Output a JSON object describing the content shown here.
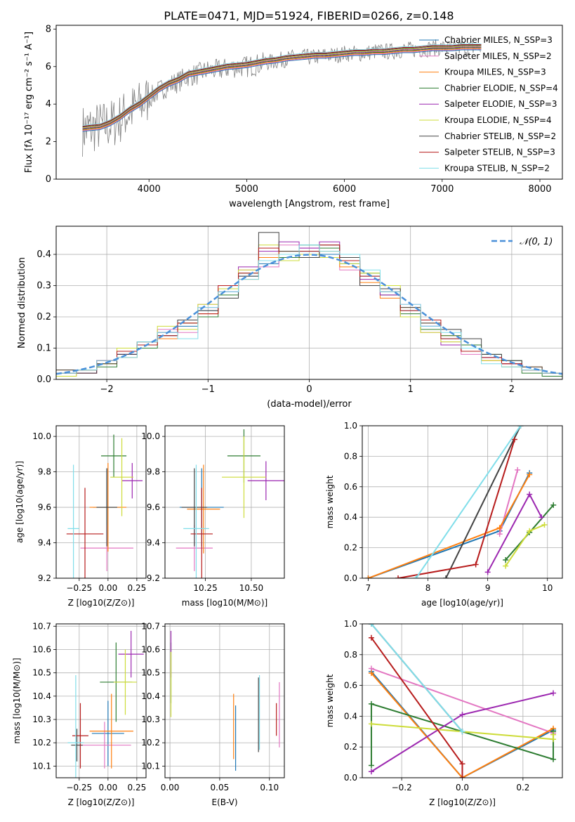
{
  "figure": {
    "title": "PLATE=0471, MJD=51924, FIBERID=0266, z=0.148"
  },
  "colors": {
    "data": "#808080",
    "series": [
      "#1f77b4",
      "#e377c2",
      "#ff7f0e",
      "#2e7d32",
      "#9c27b0",
      "#cddc39",
      "#424242",
      "#b71c1c",
      "#80deea"
    ]
  },
  "chart_data": [
    {
      "type": "line",
      "title": "PLATE=0471, MJD=51924, FIBERID=0266, z=0.148",
      "xlabel": "wavelength [Angstrom, rest frame]",
      "ylabel": "Flux [fλ 10⁻¹⁷ erg cm⁻² s⁻¹ A⁻¹]",
      "xlim": [
        3050,
        8230
      ],
      "ylim": [
        0,
        8.2
      ],
      "xticks": [
        4000,
        5000,
        6000,
        7000,
        8000
      ],
      "yticks": [
        0,
        2,
        4,
        6,
        8
      ],
      "grid": false,
      "legend": "top-right",
      "legend_entries": [
        "Chabrier MILES, N_SSP=3",
        "Salpeter MILES, N_SSP=2",
        "Kroupa MILES, N_SSP=3",
        "Chabrier ELODIE, N_SSP=4",
        "Salpeter ELODIE, N_SSP=3",
        "Kroupa ELODIE, N_SSP=4",
        "Chabrier STELIB, N_SSP=2",
        "Salpeter STELIB, N_SSP=3",
        "Kroupa STELIB, N_SSP=2"
      ],
      "data_series": {
        "x": [
          3320,
          3400,
          3500,
          3600,
          3700,
          3800,
          3900,
          4000,
          4100,
          4200,
          4300,
          4400,
          4500,
          4600,
          4700,
          4800,
          4900,
          5000,
          5100,
          5200,
          5300,
          5400,
          5500,
          5600,
          5700,
          5800,
          5900,
          6000,
          6100,
          6200,
          6300,
          6400,
          6500,
          6600,
          6700,
          6800,
          6900,
          7000,
          7100,
          7200,
          7300,
          7400
        ],
        "y": [
          2.6,
          2.7,
          2.8,
          2.9,
          3.2,
          3.6,
          3.9,
          4.3,
          4.7,
          5.0,
          5.2,
          5.5,
          5.6,
          5.8,
          5.8,
          5.9,
          6.0,
          6.0,
          6.1,
          6.2,
          6.3,
          6.4,
          6.5,
          6.5,
          6.5,
          6.6,
          6.6,
          6.7,
          6.7,
          6.7,
          6.8,
          6.8,
          6.8,
          6.9,
          6.9,
          6.9,
          7.0,
          7.0,
          7.0,
          7.0,
          7.0,
          7.0
        ]
      },
      "model_series": {
        "x": [
          3320,
          3400,
          3500,
          3600,
          3700,
          3800,
          3900,
          4000,
          4100,
          4200,
          4300,
          4400,
          4500,
          4600,
          4700,
          4800,
          4900,
          5000,
          5100,
          5200,
          5300,
          5400,
          5500,
          5600,
          5700,
          5800,
          5900,
          6000,
          6100,
          6200,
          6300,
          6400,
          6500,
          6600,
          6700,
          6800,
          6900,
          7000,
          7100,
          7200,
          7300,
          7400
        ],
        "y": [
          2.7,
          2.75,
          2.8,
          3.0,
          3.3,
          3.7,
          4.0,
          4.4,
          4.8,
          5.1,
          5.3,
          5.6,
          5.7,
          5.8,
          5.9,
          6.0,
          6.05,
          6.1,
          6.2,
          6.3,
          6.35,
          6.45,
          6.5,
          6.55,
          6.6,
          6.6,
          6.65,
          6.7,
          6.75,
          6.75,
          6.8,
          6.8,
          6.85,
          6.9,
          6.9,
          6.95,
          7.0,
          7.0,
          7.0,
          7.05,
          7.05,
          7.05
        ]
      }
    },
    {
      "type": "line",
      "xlabel": "(data-model)/error",
      "ylabel": "Normed distribution",
      "xlim": [
        -2.5,
        2.5
      ],
      "ylim": [
        0,
        0.49
      ],
      "xticks": [
        -2,
        -1,
        0,
        1,
        2
      ],
      "yticks": [
        0.0,
        0.1,
        0.2,
        0.3,
        0.4
      ],
      "grid": true,
      "legend": "top-right",
      "legend_entries": [
        "𝒩(0, 1)"
      ],
      "hist_edges": [
        -2.5,
        -2.3,
        -2.1,
        -1.9,
        -1.7,
        -1.5,
        -1.3,
        -1.1,
        -0.9,
        -0.7,
        -0.5,
        -0.3,
        -0.1,
        0.1,
        0.3,
        0.5,
        0.7,
        0.9,
        1.1,
        1.3,
        1.5,
        1.7,
        1.9,
        2.1,
        2.3,
        2.5
      ],
      "hist_series": [
        [
          0.02,
          0.03,
          0.05,
          0.08,
          0.11,
          0.14,
          0.17,
          0.22,
          0.28,
          0.33,
          0.37,
          0.4,
          0.41,
          0.4,
          0.37,
          0.33,
          0.28,
          0.22,
          0.17,
          0.13,
          0.1,
          0.07,
          0.05,
          0.03,
          0.02
        ],
        [
          0.01,
          0.02,
          0.06,
          0.09,
          0.12,
          0.16,
          0.15,
          0.24,
          0.3,
          0.35,
          0.36,
          0.43,
          0.42,
          0.39,
          0.35,
          0.3,
          0.29,
          0.24,
          0.15,
          0.12,
          0.08,
          0.06,
          0.04,
          0.03,
          0.02
        ],
        [
          0.03,
          0.02,
          0.05,
          0.07,
          0.12,
          0.13,
          0.18,
          0.21,
          0.29,
          0.32,
          0.39,
          0.41,
          0.4,
          0.41,
          0.36,
          0.31,
          0.26,
          0.23,
          0.18,
          0.14,
          0.09,
          0.06,
          0.05,
          0.04,
          0.02
        ],
        [
          0.02,
          0.03,
          0.04,
          0.09,
          0.1,
          0.15,
          0.18,
          0.2,
          0.27,
          0.34,
          0.38,
          0.39,
          0.43,
          0.42,
          0.39,
          0.34,
          0.27,
          0.21,
          0.16,
          0.14,
          0.11,
          0.08,
          0.06,
          0.02,
          0.01
        ],
        [
          0.02,
          0.02,
          0.06,
          0.08,
          0.11,
          0.15,
          0.19,
          0.23,
          0.28,
          0.36,
          0.41,
          0.44,
          0.42,
          0.44,
          0.38,
          0.32,
          0.27,
          0.2,
          0.17,
          0.11,
          0.09,
          0.07,
          0.05,
          0.03,
          0.02
        ],
        [
          0.01,
          0.03,
          0.05,
          0.1,
          0.11,
          0.17,
          0.16,
          0.24,
          0.29,
          0.35,
          0.43,
          0.38,
          0.4,
          0.39,
          0.37,
          0.34,
          0.3,
          0.2,
          0.15,
          0.12,
          0.1,
          0.06,
          0.04,
          0.03,
          0.02
        ],
        [
          0.03,
          0.02,
          0.05,
          0.08,
          0.12,
          0.14,
          0.19,
          0.22,
          0.26,
          0.33,
          0.47,
          0.41,
          0.39,
          0.43,
          0.39,
          0.3,
          0.29,
          0.23,
          0.18,
          0.16,
          0.13,
          0.08,
          0.06,
          0.04,
          0.02
        ],
        [
          0.02,
          0.03,
          0.06,
          0.09,
          0.11,
          0.14,
          0.18,
          0.21,
          0.3,
          0.34,
          0.42,
          0.4,
          0.41,
          0.43,
          0.38,
          0.33,
          0.28,
          0.22,
          0.19,
          0.13,
          0.09,
          0.07,
          0.05,
          0.03,
          0.02
        ],
        [
          0.02,
          0.03,
          0.06,
          0.07,
          0.12,
          0.15,
          0.13,
          0.23,
          0.28,
          0.32,
          0.38,
          0.4,
          0.43,
          0.41,
          0.4,
          0.35,
          0.28,
          0.24,
          0.17,
          0.15,
          0.1,
          0.05,
          0.04,
          0.03,
          0.02
        ]
      ],
      "gaussian": {
        "mean": 0,
        "std": 1,
        "label": "𝒩(0, 1)"
      }
    },
    {
      "type": "scatter",
      "xlabel": "Z [log10(Z/Z⊙)]",
      "ylabel": "age  [log10(age/yr)]",
      "xlim": [
        -0.45,
        0.33
      ],
      "ylim": [
        9.2,
        10.06
      ],
      "xticks": [
        -0.25,
        0.0,
        0.25
      ],
      "xticklabels": [
        "−0.25",
        "0.00",
        "0.25"
      ],
      "yticks": [
        9.2,
        9.4,
        9.6,
        9.8,
        10.0
      ],
      "grid": true,
      "points": [
        {
          "x": -0.01,
          "y": 9.6,
          "xerr": 0.12,
          "yerr": 0.22
        },
        {
          "x": -0.01,
          "y": 9.37,
          "xerr": 0.23,
          "yerr": 0.13
        },
        {
          "x": 0.0,
          "y": 9.6,
          "xerr": 0.16,
          "yerr": 0.25
        },
        {
          "x": 0.05,
          "y": 9.89,
          "xerr": 0.11,
          "yerr": 0.12
        },
        {
          "x": 0.21,
          "y": 9.75,
          "xerr": 0.09,
          "yerr": 0.1
        },
        {
          "x": 0.12,
          "y": 9.77,
          "xerr": 0.1,
          "yerr": 0.22
        },
        {
          "x": -0.01,
          "y": 9.6,
          "xerr": 0.09,
          "yerr": 0.22
        },
        {
          "x": -0.2,
          "y": 9.45,
          "xerr": 0.16,
          "yerr": 0.26
        },
        {
          "x": -0.3,
          "y": 9.48,
          "xerr": 0.05,
          "yerr": 0.36
        }
      ]
    },
    {
      "type": "scatter",
      "xlabel": "mass [log10(M/M⊙)]",
      "xlim": [
        10.03,
        10.68
      ],
      "ylim": [
        9.2,
        10.06
      ],
      "xticks": [
        10.25,
        10.5
      ],
      "xticklabels": [
        "10.25",
        "10.50"
      ],
      "yticks": [
        9.2,
        9.4,
        9.6,
        9.8,
        10.0
      ],
      "grid": true,
      "points": [
        {
          "x": 10.23,
          "y": 9.6,
          "xerr": 0.12,
          "yerr": 0.22
        },
        {
          "x": 10.19,
          "y": 9.37,
          "xerr": 0.1,
          "yerr": 0.13
        },
        {
          "x": 10.24,
          "y": 9.59,
          "xerr": 0.09,
          "yerr": 0.25
        },
        {
          "x": 10.46,
          "y": 9.89,
          "xerr": 0.09,
          "yerr": 0.15
        },
        {
          "x": 10.58,
          "y": 9.75,
          "xerr": 0.1,
          "yerr": 0.11
        },
        {
          "x": 10.46,
          "y": 9.77,
          "xerr": 0.12,
          "yerr": 0.23
        },
        {
          "x": 10.19,
          "y": 9.6,
          "xerr": 0.07,
          "yerr": 0.22
        },
        {
          "x": 10.23,
          "y": 9.45,
          "xerr": 0.06,
          "yerr": 0.26
        },
        {
          "x": 10.2,
          "y": 9.48,
          "xerr": 0.07,
          "yerr": 0.36
        }
      ]
    },
    {
      "type": "line",
      "xlabel": "age  [log10(age/yr)]",
      "ylabel": "mass weight",
      "xlim": [
        6.9,
        10.25
      ],
      "ylim": [
        0,
        1.0
      ],
      "xticks": [
        7,
        8,
        9,
        10
      ],
      "yticks": [
        0.0,
        0.2,
        0.4,
        0.6,
        0.8,
        1.0
      ],
      "grid": true,
      "series": [
        {
          "x": [
            7.0,
            9.2,
            9.7
          ],
          "y": [
            0.0,
            0.31,
            0.69
          ]
        },
        {
          "x": [
            9.2,
            9.5
          ],
          "y": [
            0.29,
            0.71
          ]
        },
        {
          "x": [
            7.0,
            9.2,
            9.7
          ],
          "y": [
            0.0,
            0.33,
            0.68
          ]
        },
        {
          "x": [
            9.3,
            9.7,
            10.1
          ],
          "y": [
            0.12,
            0.3,
            0.48
          ]
        },
        {
          "x": [
            9.0,
            9.7,
            9.9
          ],
          "y": [
            0.04,
            0.55,
            0.4
          ]
        },
        {
          "x": [
            9.3,
            9.7,
            9.95
          ],
          "y": [
            0.08,
            0.31,
            0.35
          ]
        },
        {
          "x": [
            8.3,
            9.55
          ],
          "y": [
            0.0,
            1.0
          ]
        },
        {
          "x": [
            7.5,
            8.8,
            9.45
          ],
          "y": [
            0.0,
            0.09,
            0.91
          ]
        },
        {
          "x": [
            7.8,
            9.55
          ],
          "y": [
            0.0,
            1.0
          ]
        }
      ]
    },
    {
      "type": "scatter",
      "xlabel": "Z [log10(Z/Z⊙)]",
      "ylabel": "mass [log10(M/M⊙)]",
      "xlim": [
        -0.45,
        0.33
      ],
      "ylim": [
        10.05,
        10.71
      ],
      "xticks": [
        -0.25,
        0.0,
        0.25
      ],
      "xticklabels": [
        "−0.25",
        "0.00",
        "0.25"
      ],
      "yticks": [
        10.1,
        10.2,
        10.3,
        10.4,
        10.5,
        10.6,
        10.7
      ],
      "grid": true,
      "points": [
        {
          "x": 0.0,
          "y": 10.24,
          "xerr": 0.14,
          "yerr": 0.14
        },
        {
          "x": -0.03,
          "y": 10.19,
          "xerr": 0.23,
          "yerr": 0.1
        },
        {
          "x": 0.03,
          "y": 10.25,
          "xerr": 0.19,
          "yerr": 0.16
        },
        {
          "x": 0.07,
          "y": 10.46,
          "xerr": 0.14,
          "yerr": 0.17
        },
        {
          "x": 0.2,
          "y": 10.58,
          "xerr": 0.11,
          "yerr": 0.1
        },
        {
          "x": 0.15,
          "y": 10.46,
          "xerr": 0.1,
          "yerr": 0.14
        },
        {
          "x": -0.27,
          "y": 10.19,
          "xerr": 0.05,
          "yerr": 0.07
        },
        {
          "x": -0.24,
          "y": 10.23,
          "xerr": 0.07,
          "yerr": 0.14
        },
        {
          "x": -0.28,
          "y": 10.2,
          "xerr": 0.07,
          "yerr": 0.29
        }
      ]
    },
    {
      "type": "scatter",
      "xlabel": "E(B-V)",
      "xlim": [
        -0.005,
        0.115
      ],
      "ylim": [
        10.05,
        10.71
      ],
      "xticks": [
        0.0,
        0.05,
        0.1
      ],
      "xticklabels": [
        "0.00",
        "0.05",
        "0.10"
      ],
      "yticks": [
        10.1,
        10.2,
        10.3,
        10.4,
        10.5,
        10.6,
        10.7
      ],
      "grid": true,
      "points": [
        {
          "x": 0.066,
          "y": 10.22,
          "xerr": 0,
          "yerr": 0.14
        },
        {
          "x": 0.11,
          "y": 10.32,
          "xerr": 0,
          "yerr": 0.14
        },
        {
          "x": 0.064,
          "y": 10.27,
          "xerr": 0,
          "yerr": 0.14
        },
        {
          "x": 0.001,
          "y": 10.5,
          "xerr": 0,
          "yerr": 0.13
        },
        {
          "x": 0.001,
          "y": 10.58,
          "xerr": 0,
          "yerr": 0.1
        },
        {
          "x": 0.001,
          "y": 10.45,
          "xerr": 0,
          "yerr": 0.14
        },
        {
          "x": 0.089,
          "y": 10.32,
          "xerr": 0,
          "yerr": 0.16
        },
        {
          "x": 0.107,
          "y": 10.3,
          "xerr": 0,
          "yerr": 0.07
        },
        {
          "x": 0.09,
          "y": 10.33,
          "xerr": 0,
          "yerr": 0.16
        }
      ]
    },
    {
      "type": "line",
      "xlabel": "Z [log10(Z/Z⊙)]",
      "ylabel": "mass weight",
      "xlim": [
        -0.33,
        0.33
      ],
      "ylim": [
        0,
        1.0
      ],
      "xticks": [
        -0.2,
        0.0,
        0.2
      ],
      "xticklabels": [
        "−0.2",
        "0.0",
        "0.2"
      ],
      "yticks": [
        0.0,
        0.2,
        0.4,
        0.6,
        0.8,
        1.0
      ],
      "grid": true,
      "series": [
        {
          "x": [
            -0.3,
            0.0,
            0.3
          ],
          "y": [
            0.69,
            0.0,
            0.31
          ]
        },
        {
          "x": [
            -0.3,
            0.3
          ],
          "y": [
            0.71,
            0.29
          ]
        },
        {
          "x": [
            -0.3,
            0.0,
            0.3
          ],
          "y": [
            0.68,
            0.0,
            0.32
          ]
        },
        {
          "x": [
            -0.3,
            -0.3,
            0.3,
            0.3
          ],
          "y": [
            0.08,
            0.48,
            0.12,
            0.3
          ]
        },
        {
          "x": [
            -0.3,
            0.0,
            0.3
          ],
          "y": [
            0.04,
            0.41,
            0.55
          ]
        },
        {
          "x": [
            -0.3,
            0.3,
            0.3
          ],
          "y": [
            0.35,
            0.25,
            0.28
          ]
        },
        {
          "x": [
            -0.3,
            0.0
          ],
          "y": [
            1.0,
            0.3
          ]
        },
        {
          "x": [
            -0.3,
            0.0,
            0.0
          ],
          "y": [
            0.91,
            0.09,
            0.0
          ]
        },
        {
          "x": [
            -0.3,
            0.0
          ],
          "y": [
            1.0,
            0.3
          ]
        }
      ]
    }
  ]
}
